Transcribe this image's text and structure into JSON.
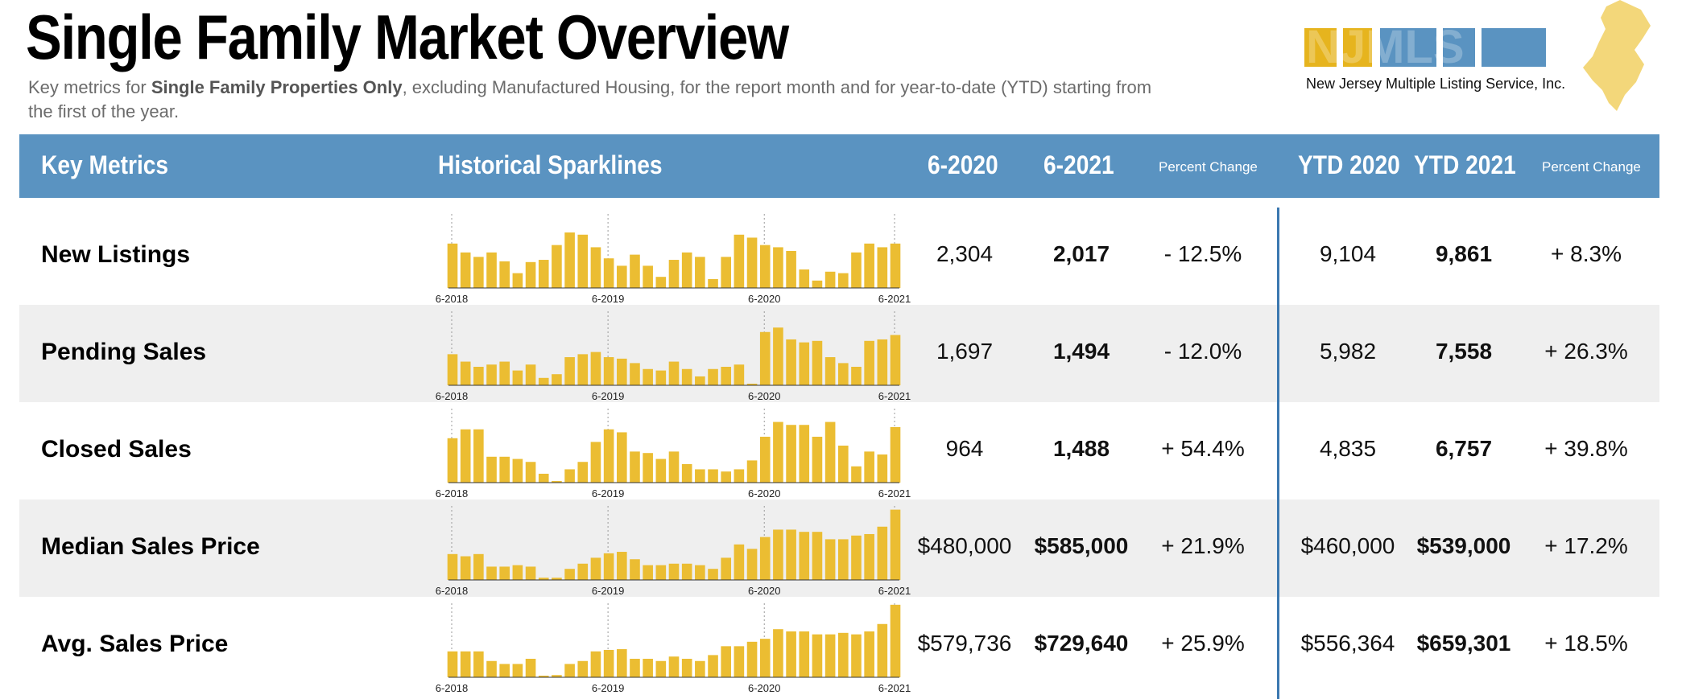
{
  "header": {
    "title": "Single Family Market Overview",
    "subtitle_prefix": "Key metrics for ",
    "subtitle_bold": "Single Family Properties Only",
    "subtitle_suffix": ", excluding Manufactured Housing, for the report month and for year-to-date (YTD) starting from the first of the year."
  },
  "logo": {
    "text": "NJMLS",
    "subtitle": "New Jersey Multiple Listing Service, Inc."
  },
  "columns": {
    "metric": "Key Metrics",
    "sparkline": "Historical Sparklines",
    "month_prev": "6-2020",
    "month_curr": "6-2021",
    "pct_change_month": "Percent Change",
    "ytd_prev": "YTD 2020",
    "ytd_curr": "YTD 2021",
    "pct_change_ytd": "Percent Change"
  },
  "sparkline_ticks": [
    "6-2018",
    "6-2019",
    "6-2020",
    "6-2021"
  ],
  "colors": {
    "header_bg": "#5a93c1",
    "bar": "#ebbd32",
    "divider": "#3b78b0",
    "shaded_row": "#efefef"
  },
  "rows": [
    {
      "name": "New Listings",
      "prev": "2,304",
      "curr": "2,017",
      "pct": "- 12.5%",
      "ytd_prev": "9,104",
      "ytd_curr": "9,861",
      "ytd_pct": "+ 8.3%",
      "spark": [
        0.6,
        0.48,
        0.42,
        0.48,
        0.36,
        0.2,
        0.35,
        0.38,
        0.58,
        0.75,
        0.72,
        0.55,
        0.4,
        0.3,
        0.45,
        0.3,
        0.15,
        0.38,
        0.48,
        0.42,
        0.12,
        0.42,
        0.72,
        0.68,
        0.58,
        0.55,
        0.5,
        0.25,
        0.1,
        0.22,
        0.2,
        0.48,
        0.6,
        0.55,
        0.6
      ]
    },
    {
      "name": "Pending Sales",
      "prev": "1,697",
      "curr": "1,494",
      "pct": "- 12.0%",
      "ytd_prev": "5,982",
      "ytd_curr": "7,558",
      "ytd_pct": "+ 26.3%",
      "spark": [
        0.42,
        0.32,
        0.25,
        0.28,
        0.32,
        0.2,
        0.28,
        0.1,
        0.15,
        0.38,
        0.42,
        0.45,
        0.38,
        0.36,
        0.3,
        0.22,
        0.2,
        0.32,
        0.22,
        0.12,
        0.22,
        0.25,
        0.28,
        0.02,
        0.72,
        0.78,
        0.62,
        0.58,
        0.6,
        0.38,
        0.3,
        0.25,
        0.6,
        0.62,
        0.68
      ]
    },
    {
      "name": "Closed Sales",
      "prev": "964",
      "curr": "1,488",
      "pct": "+ 54.4%",
      "ytd_prev": "4,835",
      "ytd_curr": "6,757",
      "ytd_pct": "+ 39.8%",
      "spark": [
        0.6,
        0.72,
        0.72,
        0.35,
        0.35,
        0.32,
        0.28,
        0.12,
        0.02,
        0.18,
        0.28,
        0.55,
        0.72,
        0.68,
        0.42,
        0.4,
        0.32,
        0.42,
        0.25,
        0.18,
        0.18,
        0.15,
        0.18,
        0.3,
        0.62,
        0.82,
        0.78,
        0.78,
        0.62,
        0.82,
        0.5,
        0.22,
        0.42,
        0.38,
        0.75
      ]
    },
    {
      "name": "Median Sales Price",
      "prev": "$480,000",
      "curr": "$585,000",
      "pct": "+ 21.9%",
      "ytd_prev": "$460,000",
      "ytd_curr": "$539,000",
      "ytd_pct": "+ 17.2%",
      "spark": [
        0.35,
        0.32,
        0.35,
        0.18,
        0.18,
        0.2,
        0.18,
        0.03,
        0.03,
        0.15,
        0.22,
        0.3,
        0.36,
        0.38,
        0.28,
        0.2,
        0.2,
        0.22,
        0.22,
        0.2,
        0.15,
        0.3,
        0.48,
        0.42,
        0.58,
        0.68,
        0.68,
        0.65,
        0.65,
        0.55,
        0.55,
        0.6,
        0.62,
        0.72,
        0.95
      ]
    },
    {
      "name": "Avg. Sales Price",
      "prev": "$579,736",
      "curr": "$729,640",
      "pct": "+ 25.9%",
      "ytd_prev": "$556,364",
      "ytd_curr": "$659,301",
      "ytd_pct": "+ 18.5%",
      "spark": [
        0.35,
        0.35,
        0.35,
        0.22,
        0.18,
        0.18,
        0.25,
        0.02,
        0.03,
        0.18,
        0.22,
        0.35,
        0.37,
        0.38,
        0.25,
        0.25,
        0.22,
        0.28,
        0.25,
        0.22,
        0.3,
        0.42,
        0.42,
        0.48,
        0.52,
        0.65,
        0.62,
        0.62,
        0.58,
        0.58,
        0.6,
        0.58,
        0.62,
        0.72,
        0.98
      ]
    }
  ]
}
